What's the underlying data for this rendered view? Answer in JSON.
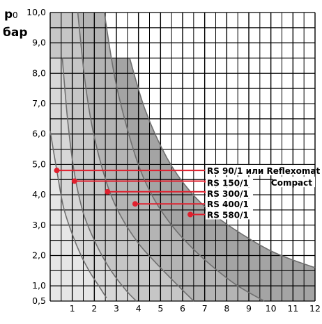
{
  "chart_data": {
    "type": "area",
    "ylabel_symbol": "p",
    "ylabel_subscript": "0",
    "ylabel_unit": "бар",
    "x_ticks": [
      "1",
      "2",
      "3",
      "4",
      "5",
      "6",
      "7",
      "8",
      "9",
      "10",
      "11",
      "12"
    ],
    "y_ticks": [
      {
        "value": 0.5,
        "label": "0,5"
      },
      {
        "value": 1.0,
        "label": "1,0"
      },
      {
        "value": 2.0,
        "label": "2,0"
      },
      {
        "value": 3.0,
        "label": "3,0"
      },
      {
        "value": 4.0,
        "label": "4,0"
      },
      {
        "value": 5.0,
        "label": "5,0"
      },
      {
        "value": 6.0,
        "label": "6,0"
      },
      {
        "value": 7.0,
        "label": "7,0"
      },
      {
        "value": 8.0,
        "label": "8,0"
      },
      {
        "value": 9.0,
        "label": "9,0"
      },
      {
        "value": 10.0,
        "label": "10,0"
      }
    ],
    "xlim": [
      0,
      12
    ],
    "ylim": [
      0.5,
      10.0
    ],
    "grid": true,
    "series": [
      {
        "label": "RS 90/1 или Reflexomat",
        "label_line2": "Compact",
        "marker_x": 0.3,
        "marker_y": 4.8,
        "label_y": 4.8,
        "curve": [
          [
            0.0,
            6.1
          ],
          [
            0.3,
            4.8
          ],
          [
            0.6,
            3.6
          ],
          [
            1.0,
            2.7
          ],
          [
            1.4,
            2.0
          ],
          [
            1.8,
            1.45
          ],
          [
            2.2,
            1.0
          ],
          [
            2.55,
            0.6
          ]
        ]
      },
      {
        "label": "RS 150/1",
        "label_line2": "",
        "marker_x": 1.1,
        "marker_y": 4.45,
        "label_y": 4.4,
        "curve": [
          [
            0.55,
            8.5
          ],
          [
            0.8,
            6.4
          ],
          [
            1.1,
            4.7
          ],
          [
            1.5,
            3.4
          ],
          [
            2.0,
            2.5
          ],
          [
            2.5,
            1.8
          ],
          [
            3.0,
            1.25
          ],
          [
            3.5,
            0.8
          ],
          [
            3.9,
            0.5
          ]
        ]
      },
      {
        "label": "RS 300/1",
        "label_line2": "",
        "marker_x": 2.6,
        "marker_y": 4.1,
        "label_y": 4.05,
        "curve": [
          [
            1.25,
            10.0
          ],
          [
            1.6,
            7.6
          ],
          [
            2.0,
            5.9
          ],
          [
            2.6,
            4.3
          ],
          [
            3.2,
            3.3
          ],
          [
            4.0,
            2.4
          ],
          [
            4.8,
            1.75
          ],
          [
            5.6,
            1.15
          ],
          [
            6.5,
            0.5
          ]
        ]
      },
      {
        "label": "RS 400/1",
        "label_line2": "",
        "marker_x": 3.85,
        "marker_y": 3.7,
        "label_y": 3.7,
        "curve": [
          [
            2.45,
            10.0
          ],
          [
            3.0,
            7.6
          ],
          [
            3.85,
            5.3
          ],
          [
            4.6,
            4.0
          ],
          [
            5.5,
            3.0
          ],
          [
            6.5,
            2.2
          ],
          [
            7.5,
            1.55
          ],
          [
            8.5,
            1.0
          ],
          [
            9.7,
            0.5
          ]
        ]
      },
      {
        "label": "RS 580/1",
        "label_line2": "",
        "marker_x": 6.35,
        "marker_y": 3.35,
        "label_y": 3.35,
        "curve": [
          [
            3.6,
            8.5
          ],
          [
            4.3,
            6.8
          ],
          [
            5.3,
            5.2
          ],
          [
            6.35,
            4.1
          ],
          [
            7.5,
            3.3
          ],
          [
            8.8,
            2.65
          ],
          [
            10.0,
            2.15
          ],
          [
            11.0,
            1.85
          ],
          [
            12.0,
            1.6
          ]
        ]
      }
    ]
  }
}
